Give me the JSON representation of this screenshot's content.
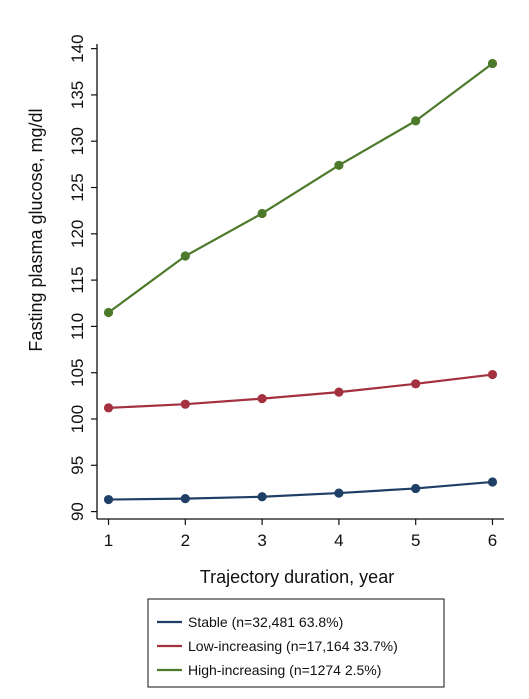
{
  "chart_data": {
    "type": "line",
    "xlabel": "Trajectory duration, year",
    "ylabel": "Fasting plasma glucose, mg/dl",
    "x": [
      1,
      2,
      3,
      4,
      5,
      6
    ],
    "xticks": [
      "1",
      "2",
      "3",
      "4",
      "5",
      "6"
    ],
    "yticks": [
      "90",
      "95",
      "100",
      "105",
      "110",
      "115",
      "120",
      "125",
      "130",
      "135",
      "140"
    ],
    "xlim": [
      0.85,
      6.15
    ],
    "ylim": [
      89.2,
      140.5
    ],
    "grid": false,
    "legend_position": "bottom",
    "series": [
      {
        "name": "Stable (n=32,481 63.8%)",
        "color": "#1f3f66",
        "values": [
          91.3,
          91.4,
          91.6,
          92.0,
          92.5,
          93.2
        ]
      },
      {
        "name": "Low-increasing (n=17,164 33.7%)",
        "color": "#a3313f",
        "values": [
          101.2,
          101.6,
          102.2,
          102.9,
          103.8,
          104.8
        ]
      },
      {
        "name": "High-increasing (n=1274 2.5%)",
        "color": "#4c7a2a",
        "values": [
          111.5,
          117.6,
          122.2,
          127.4,
          132.2,
          138.4
        ]
      }
    ]
  }
}
